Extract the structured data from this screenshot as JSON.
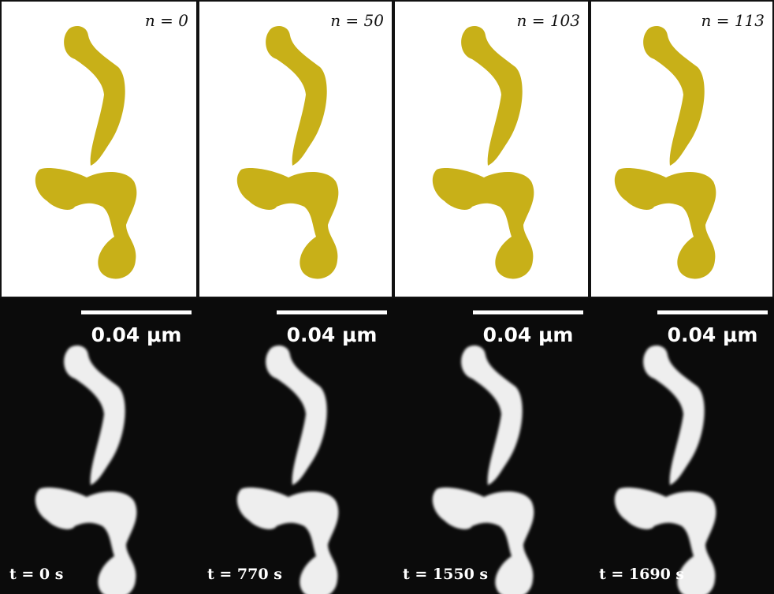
{
  "panels": [
    {
      "n_label": "n = 0",
      "scale_label": "0.04 μm",
      "time_label": "t = 0 s"
    },
    {
      "n_label": "n = 50",
      "scale_label": "0.04 μm",
      "time_label": "t = 770 s"
    },
    {
      "n_label": "n = 103",
      "scale_label": "0.04 μm",
      "time_label": "t = 1550 s"
    },
    {
      "n_label": "n = 113",
      "scale_label": "0.04 μm",
      "time_label": "t = 1690 s"
    }
  ]
}
